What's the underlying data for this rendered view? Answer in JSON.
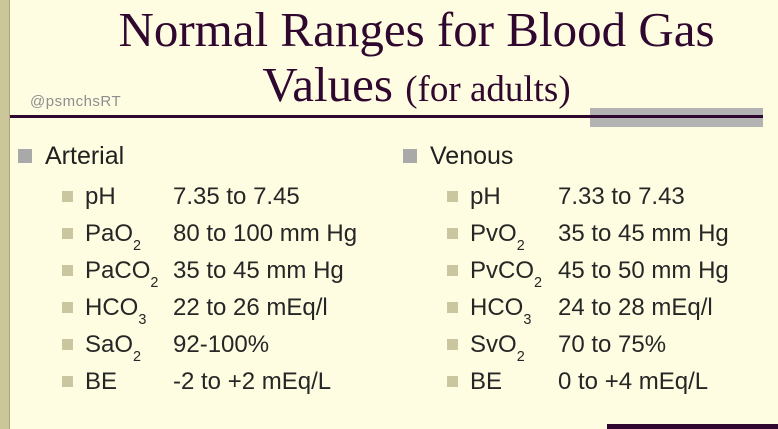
{
  "slide": {
    "title_line1": "Normal Ranges for Blood Gas",
    "title_line2_main": "Values ",
    "title_line2_paren": "(for adults)",
    "watermark": "@psmchsRT"
  },
  "colors": {
    "background": "#FEFDE2",
    "accent_purple": "#30082F",
    "edge_strip": "#CBC79A",
    "gray_accent_bar": "#B3B3B3",
    "top_bullet": "#A9A9A9",
    "sub_bullet": "#C9C6A0",
    "body_text": "#262626",
    "watermark_gray": "#8E8E8E"
  },
  "sections": [
    {
      "heading": "Arterial",
      "items": [
        {
          "label": "pH",
          "sub": "",
          "value": "7.35 to 7.45"
        },
        {
          "label": "PaO",
          "sub": "2",
          "value": "80 to 100 mm Hg"
        },
        {
          "label": "PaCO",
          "sub": "2",
          "value": "35 to 45 mm Hg"
        },
        {
          "label": "HCO",
          "sub": "3",
          "value": "22 to 26 mEq/l"
        },
        {
          "label": "SaO",
          "sub": "2",
          "value": "92-100%"
        },
        {
          "label": "BE",
          "sub": "",
          "value": "-2 to +2 mEq/L"
        }
      ]
    },
    {
      "heading": "Venous",
      "items": [
        {
          "label": "pH",
          "sub": "",
          "value": "7.33 to 7.43"
        },
        {
          "label": "PvO",
          "sub": "2",
          "value": "35 to 45 mm Hg"
        },
        {
          "label": "PvCO",
          "sub": "2",
          "value": "45 to 50 mm Hg"
        },
        {
          "label": "HCO",
          "sub": "3",
          "value": "24 to 28 mEq/l"
        },
        {
          "label": "SvO",
          "sub": "2",
          "value": "70 to 75%"
        },
        {
          "label": "BE",
          "sub": "",
          "value": "0 to +4 mEq/L"
        }
      ]
    }
  ]
}
